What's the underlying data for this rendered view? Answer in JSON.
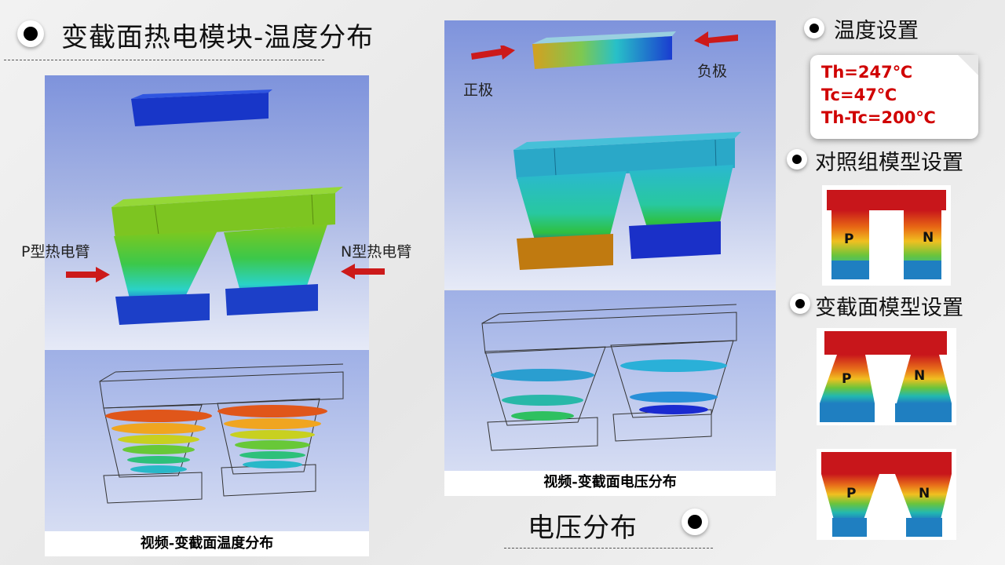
{
  "main_title": "变截面热电模块-温度分布",
  "left_panel": {
    "p_label": "P型热电臂",
    "n_label": "N型热电臂",
    "caption": "视频-变截面温度分布"
  },
  "mid_panel": {
    "positive_label": "正极",
    "negative_label": "负极",
    "caption": "视频-变截面电压分布"
  },
  "voltage_title": "电压分布",
  "right": {
    "temp_title": "温度设置",
    "temps": [
      "Th=247℃",
      "Tc=47℃",
      "Th-Tc=200℃"
    ],
    "control_title": "对照组模型设置",
    "variable_title": "变截面模型设置",
    "p": "P",
    "n": "N"
  },
  "colors": {
    "arrow": "#cc1a1a",
    "hot": "#c8161b",
    "cold": "#1f7fc1",
    "temp_text": "#d00000"
  }
}
